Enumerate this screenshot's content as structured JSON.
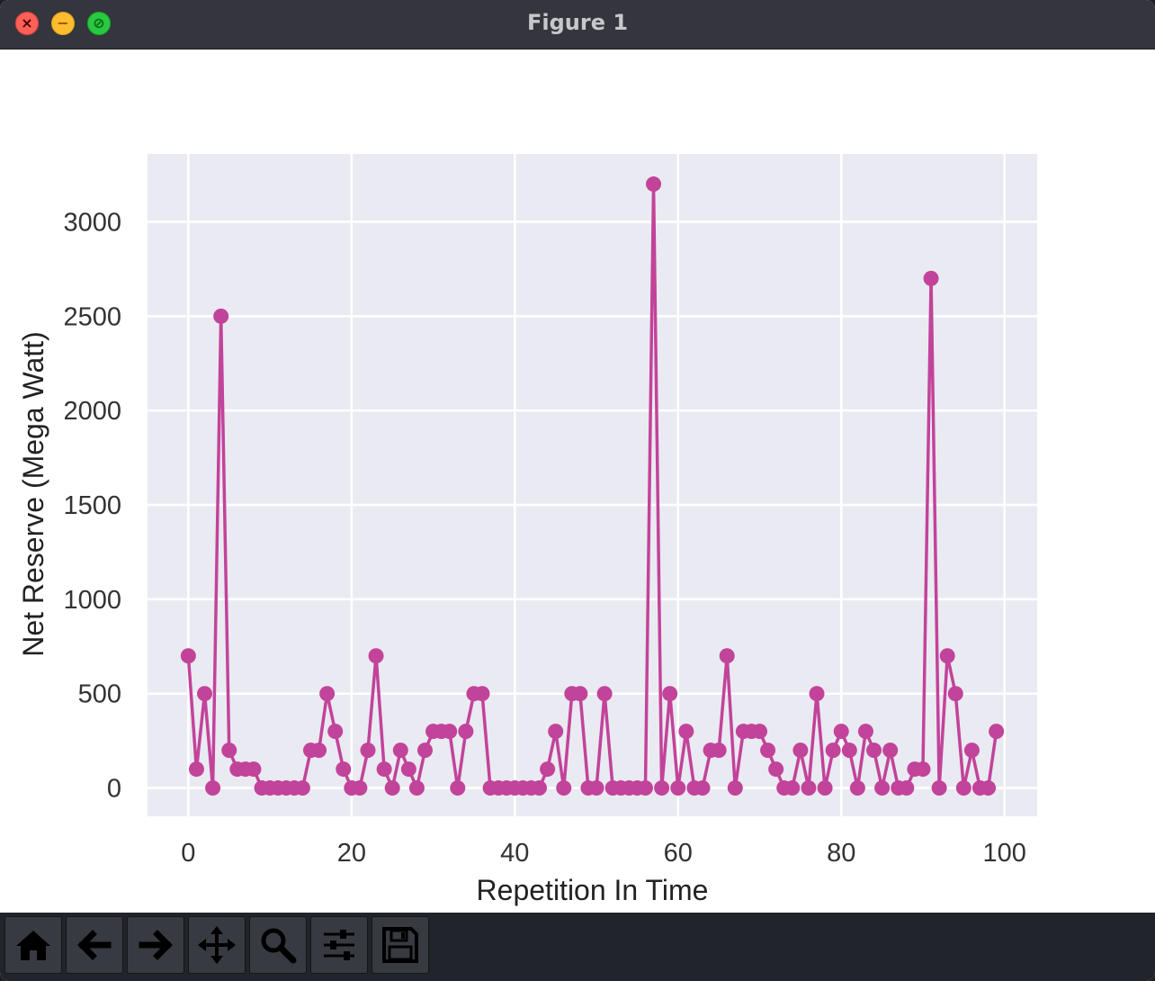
{
  "window": {
    "title": "Figure 1"
  },
  "toolbar": {
    "buttons": [
      {
        "name": "home-button",
        "icon": "home-icon"
      },
      {
        "name": "back-button",
        "icon": "arrow-left-icon"
      },
      {
        "name": "forward-button",
        "icon": "arrow-right-icon"
      },
      {
        "name": "pan-button",
        "icon": "move-icon"
      },
      {
        "name": "zoom-button",
        "icon": "magnifier-icon"
      },
      {
        "name": "configure-subplots-button",
        "icon": "sliders-icon"
      },
      {
        "name": "save-button",
        "icon": "floppy-disk-icon"
      }
    ]
  },
  "chart_data": {
    "type": "line",
    "title": "",
    "xlabel": "Repetition In Time",
    "ylabel": "Net Reserve (Mega Watt)",
    "xlim": [
      -5,
      104
    ],
    "ylim": [
      -150,
      3360
    ],
    "x_ticks": [
      0,
      20,
      40,
      60,
      80,
      100
    ],
    "x_tick_labels": [
      "0",
      "20",
      "40",
      "60",
      "80",
      "100"
    ],
    "y_ticks": [
      0,
      500,
      1000,
      1500,
      2000,
      2500,
      3000
    ],
    "y_tick_labels": [
      "0",
      "500",
      "1000",
      "1500",
      "2000",
      "2500",
      "3000"
    ],
    "grid": true,
    "legend": "none",
    "series": [
      {
        "color": "#c2439a",
        "marker": "circle",
        "x": [
          0,
          1,
          2,
          3,
          4,
          5,
          6,
          7,
          8,
          9,
          10,
          11,
          12,
          13,
          14,
          15,
          16,
          17,
          18,
          19,
          20,
          21,
          22,
          23,
          24,
          25,
          26,
          27,
          28,
          29,
          30,
          31,
          32,
          33,
          34,
          35,
          36,
          37,
          38,
          39,
          40,
          41,
          42,
          43,
          44,
          45,
          46,
          47,
          48,
          49,
          50,
          51,
          52,
          53,
          54,
          55,
          56,
          57,
          58,
          59,
          60,
          61,
          62,
          63,
          64,
          65,
          66,
          67,
          68,
          69,
          70,
          71,
          72,
          73,
          74,
          75,
          76,
          77,
          78,
          79,
          80,
          81,
          82,
          83,
          84,
          85,
          86,
          87,
          88,
          89,
          90,
          91,
          92,
          93,
          94,
          95,
          96,
          97,
          98,
          99
        ],
        "values": [
          700,
          100,
          500,
          0,
          2500,
          200,
          100,
          100,
          100,
          0,
          0,
          0,
          0,
          0,
          0,
          200,
          200,
          500,
          300,
          100,
          0,
          0,
          200,
          700,
          100,
          0,
          200,
          100,
          0,
          200,
          300,
          300,
          300,
          0,
          300,
          500,
          500,
          0,
          0,
          0,
          0,
          0,
          0,
          0,
          100,
          300,
          0,
          500,
          500,
          0,
          0,
          500,
          0,
          0,
          0,
          0,
          0,
          3200,
          0,
          500,
          0,
          300,
          0,
          0,
          200,
          200,
          700,
          0,
          300,
          300,
          300,
          200,
          100,
          0,
          0,
          200,
          0,
          500,
          0,
          200,
          300,
          200,
          0,
          300,
          200,
          0,
          200,
          0,
          0,
          100,
          100,
          2700,
          0,
          700,
          500,
          0,
          200,
          0,
          0,
          300
        ]
      }
    ]
  },
  "style": {
    "axes_background": "#eaeaf2",
    "grid_color": "#ffffff",
    "tick_text_color": "#333333",
    "line_color": "#c2439a"
  }
}
